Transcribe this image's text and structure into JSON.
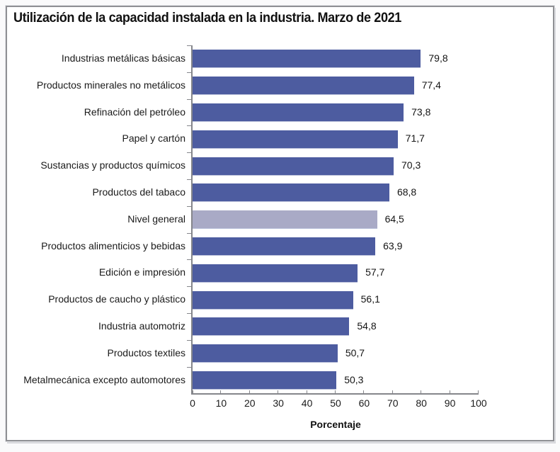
{
  "page": {
    "title": "Utilización de la capacidad instalada en la industria. Marzo de 2021"
  },
  "chart_data": {
    "type": "bar",
    "orientation": "horizontal",
    "title": "Utilización de la capacidad instalada en la industria. Marzo de 2021",
    "xlabel": "Porcentaje",
    "ylabel": "",
    "xlim": [
      0,
      100
    ],
    "x_ticks": [
      0,
      10,
      20,
      30,
      40,
      50,
      60,
      70,
      80,
      90,
      100
    ],
    "grid": false,
    "legend": "none",
    "categories": [
      "Industrias metálicas básicas",
      "Productos minerales no metálicos",
      "Refinación del petróleo",
      "Papel y cartón",
      "Sustancias y productos químicos",
      "Productos del tabaco",
      "Nivel general",
      "Productos alimenticios y bebidas",
      "Edición e impresión",
      "Productos de caucho y plástico",
      "Industria automotriz",
      "Productos textiles",
      "Metalmecánica excepto automotores"
    ],
    "values": [
      79.8,
      77.4,
      73.8,
      71.7,
      70.3,
      68.8,
      64.5,
      63.9,
      57.7,
      56.1,
      54.8,
      50.7,
      50.3
    ],
    "value_labels": [
      "79,8",
      "77,4",
      "73,8",
      "71,7",
      "70,3",
      "68,8",
      "64,5",
      "63,9",
      "57,7",
      "56,1",
      "54,8",
      "50,7",
      "50,3"
    ],
    "highlight_category": "Nivel general",
    "highlight_index": 6,
    "colors": {
      "bar": "#4d5ca0",
      "highlight_bar": "#a9aac6",
      "axis": "#85868b",
      "text": "#1a1a1a",
      "frame_border": "#8f9094",
      "background": "#ffffff"
    }
  }
}
